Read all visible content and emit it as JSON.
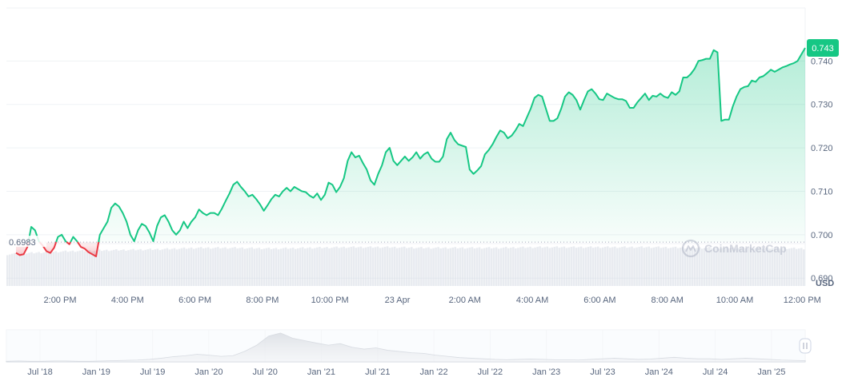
{
  "chart_data": {
    "type": "area",
    "baseline": 0.6983,
    "baseline_label": "0.6983",
    "current_label": "0.743",
    "currency": "USD",
    "watermark": "CoinMarketCap",
    "y_ticks": [
      "0.740",
      "0.730",
      "0.720",
      "0.710",
      "0.700",
      "0.690"
    ],
    "y_tick_values": [
      0.74,
      0.73,
      0.72,
      0.71,
      0.7,
      0.69
    ],
    "x_ticks": [
      "2:00 PM",
      "4:00 PM",
      "6:00 PM",
      "8:00 PM",
      "10:00 PM",
      "23 Apr",
      "2:00 AM",
      "4:00 AM",
      "6:00 AM",
      "8:00 AM",
      "10:00 AM",
      "12:00 PM"
    ],
    "ylim": [
      0.6882,
      0.7522
    ],
    "colors": {
      "up": "#16c784",
      "down": "#ea3943",
      "label_bg": "#16c784"
    },
    "series": [
      {
        "values": [
          0.6958,
          0.6953,
          0.6955,
          0.6972,
          0.7018,
          0.701,
          0.6985,
          0.6975,
          0.6962,
          0.6958,
          0.697,
          0.6995,
          0.7,
          0.6985,
          0.6978,
          0.6995,
          0.6985,
          0.6972,
          0.6968,
          0.696,
          0.6955,
          0.695,
          0.7,
          0.7015,
          0.703,
          0.7062,
          0.7072,
          0.7065,
          0.705,
          0.703,
          0.7,
          0.6985,
          0.701,
          0.7025,
          0.702,
          0.7005,
          0.6985,
          0.702,
          0.704,
          0.7045,
          0.703,
          0.701,
          0.7,
          0.701,
          0.703,
          0.7015,
          0.703,
          0.704,
          0.7058,
          0.705,
          0.7045,
          0.705,
          0.705,
          0.7045,
          0.706,
          0.7078,
          0.7095,
          0.7115,
          0.7122,
          0.711,
          0.71,
          0.7088,
          0.7092,
          0.7082,
          0.707,
          0.7055,
          0.7068,
          0.7082,
          0.7092,
          0.7088,
          0.71,
          0.7108,
          0.71,
          0.711,
          0.7105,
          0.71,
          0.7098,
          0.709,
          0.7085,
          0.7095,
          0.708,
          0.7092,
          0.712,
          0.7115,
          0.7098,
          0.711,
          0.713,
          0.717,
          0.719,
          0.7178,
          0.7182,
          0.7165,
          0.715,
          0.7125,
          0.7115,
          0.714,
          0.716,
          0.719,
          0.72,
          0.717,
          0.716,
          0.717,
          0.718,
          0.717,
          0.7178,
          0.719,
          0.7175,
          0.7185,
          0.719,
          0.7175,
          0.7168,
          0.7168,
          0.718,
          0.722,
          0.7235,
          0.7218,
          0.7208,
          0.7205,
          0.7202,
          0.715,
          0.714,
          0.7148,
          0.7158,
          0.7185,
          0.7195,
          0.7208,
          0.7225,
          0.724,
          0.7235,
          0.7222,
          0.7228,
          0.724,
          0.7255,
          0.725,
          0.727,
          0.729,
          0.7315,
          0.7322,
          0.7318,
          0.729,
          0.7262,
          0.7262,
          0.7268,
          0.729,
          0.7318,
          0.7328,
          0.7322,
          0.731,
          0.7288,
          0.731,
          0.733,
          0.7335,
          0.7325,
          0.7312,
          0.731,
          0.7325,
          0.732,
          0.7315,
          0.7312,
          0.7312,
          0.7308,
          0.7292,
          0.7292,
          0.7305,
          0.7315,
          0.7325,
          0.731,
          0.732,
          0.7318,
          0.7325,
          0.7318,
          0.7315,
          0.7328,
          0.7322,
          0.733,
          0.7362,
          0.7362,
          0.737,
          0.7382,
          0.74,
          0.7402,
          0.7405,
          0.7405,
          0.7425,
          0.742,
          0.7262,
          0.7265,
          0.7265,
          0.7295,
          0.7318,
          0.7335,
          0.734,
          0.7342,
          0.7355,
          0.7352,
          0.7362,
          0.7365,
          0.7372,
          0.738,
          0.7375,
          0.738,
          0.7385,
          0.7388,
          0.7392,
          0.7395,
          0.74,
          0.7415,
          0.743
        ]
      }
    ],
    "volume_levels": [
      0.44,
      0.47,
      0.49,
      0.5,
      0.51,
      0.53,
      0.53,
      0.52,
      0.53,
      0.54,
      0.54,
      0.53,
      0.53,
      0.53,
      0.54,
      0.54,
      0.54,
      0.54,
      0.53,
      0.53,
      0.53,
      0.52
    ],
    "overview": {
      "x_ticks": [
        "Jul '18",
        "Jan '19",
        "Jul '19",
        "Jan '20",
        "Jul '20",
        "Jan '21",
        "Jul '21",
        "Jan '22",
        "Jul '22",
        "Jan '23",
        "Jul '23",
        "Jan '24",
        "Jul '24",
        "Jan '25"
      ],
      "series": [
        0.02,
        0.03,
        0.02,
        0.02,
        0.03,
        0.03,
        0.02,
        0.02,
        0.03,
        0.04,
        0.05,
        0.06,
        0.08,
        0.12,
        0.17,
        0.2,
        0.25,
        0.22,
        0.18,
        0.2,
        0.35,
        0.55,
        0.85,
        0.95,
        0.78,
        0.7,
        0.62,
        0.55,
        0.6,
        0.48,
        0.42,
        0.46,
        0.38,
        0.34,
        0.3,
        0.28,
        0.22,
        0.18,
        0.14,
        0.12,
        0.1,
        0.08,
        0.07,
        0.08,
        0.09,
        0.08,
        0.07,
        0.07,
        0.06,
        0.08,
        0.1,
        0.12,
        0.1,
        0.08,
        0.09,
        0.12,
        0.15,
        0.12,
        0.1,
        0.1,
        0.08,
        0.1,
        0.12,
        0.1,
        0.08,
        0.06,
        0.05,
        0.04
      ]
    }
  }
}
